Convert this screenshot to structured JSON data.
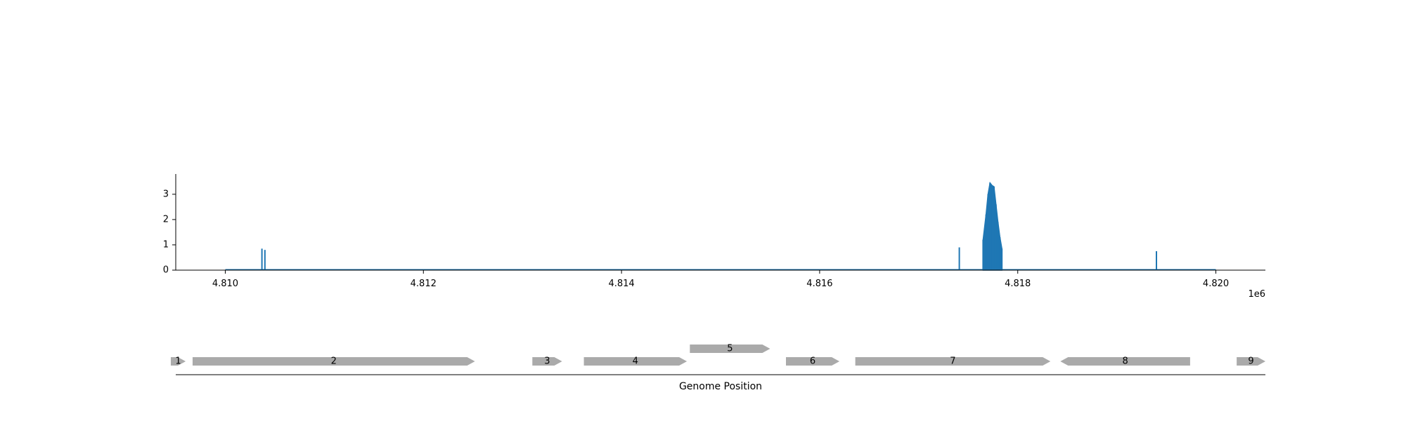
{
  "colors": {
    "coverage": "#1f77b4",
    "gene": "#aaaaaa",
    "axis": "#000000"
  },
  "chart_data": [
    {
      "type": "area",
      "title": "",
      "xlabel": "",
      "ylabel": "",
      "x_offset_label": "1e6",
      "xlim": [
        4.8095,
        4.8205
      ],
      "ylim": [
        0,
        3.8
      ],
      "x_ticks": [
        4.81,
        4.812,
        4.814,
        4.816,
        4.818,
        4.82
      ],
      "x_tick_labels": [
        "4.810",
        "4.812",
        "4.814",
        "4.816",
        "4.818",
        "4.820"
      ],
      "y_ticks": [
        0,
        1,
        2,
        3
      ],
      "y_tick_labels": [
        "0",
        "1",
        "2",
        "3"
      ],
      "baseline_range": [
        4.81,
        4.82
      ],
      "spikes": [
        {
          "x": 4.81037,
          "y": 0.85
        },
        {
          "x": 4.8104,
          "y": 0.8
        },
        {
          "x": 4.81741,
          "y": 0.9
        },
        {
          "x": 4.8194,
          "y": 0.75
        }
      ],
      "peak": {
        "x": [
          4.81765,
          4.81768,
          4.8177,
          4.81772,
          4.81774,
          4.81776,
          4.81778,
          4.8178,
          4.81782,
          4.81784
        ],
        "y": [
          1.2,
          2.2,
          3.0,
          3.45,
          3.35,
          3.3,
          2.6,
          1.9,
          1.3,
          0.85
        ]
      }
    },
    {
      "type": "gene-track",
      "xlabel": "Genome Position",
      "genes": [
        {
          "label": "1",
          "start": 4.80945,
          "end": 4.8096,
          "strand": "+",
          "row": 0
        },
        {
          "label": "2",
          "start": 4.80967,
          "end": 4.81252,
          "strand": "+",
          "row": 0
        },
        {
          "label": "3",
          "start": 4.8131,
          "end": 4.8134,
          "strand": "+",
          "row": 0
        },
        {
          "label": "4",
          "start": 4.81362,
          "end": 4.81466,
          "strand": "+",
          "row": 0
        },
        {
          "label": "5",
          "start": 4.81469,
          "end": 4.8155,
          "strand": "+",
          "row": 1
        },
        {
          "label": "6",
          "start": 4.81566,
          "end": 4.8162,
          "strand": "+",
          "row": 0
        },
        {
          "label": "7",
          "start": 4.81636,
          "end": 4.81833,
          "strand": "+",
          "row": 0
        },
        {
          "label": "8",
          "start": 4.81843,
          "end": 4.81974,
          "strand": "-",
          "row": 0
        },
        {
          "label": "9",
          "start": 4.82021,
          "end": 4.8205,
          "strand": "+",
          "row": 0
        }
      ]
    }
  ]
}
